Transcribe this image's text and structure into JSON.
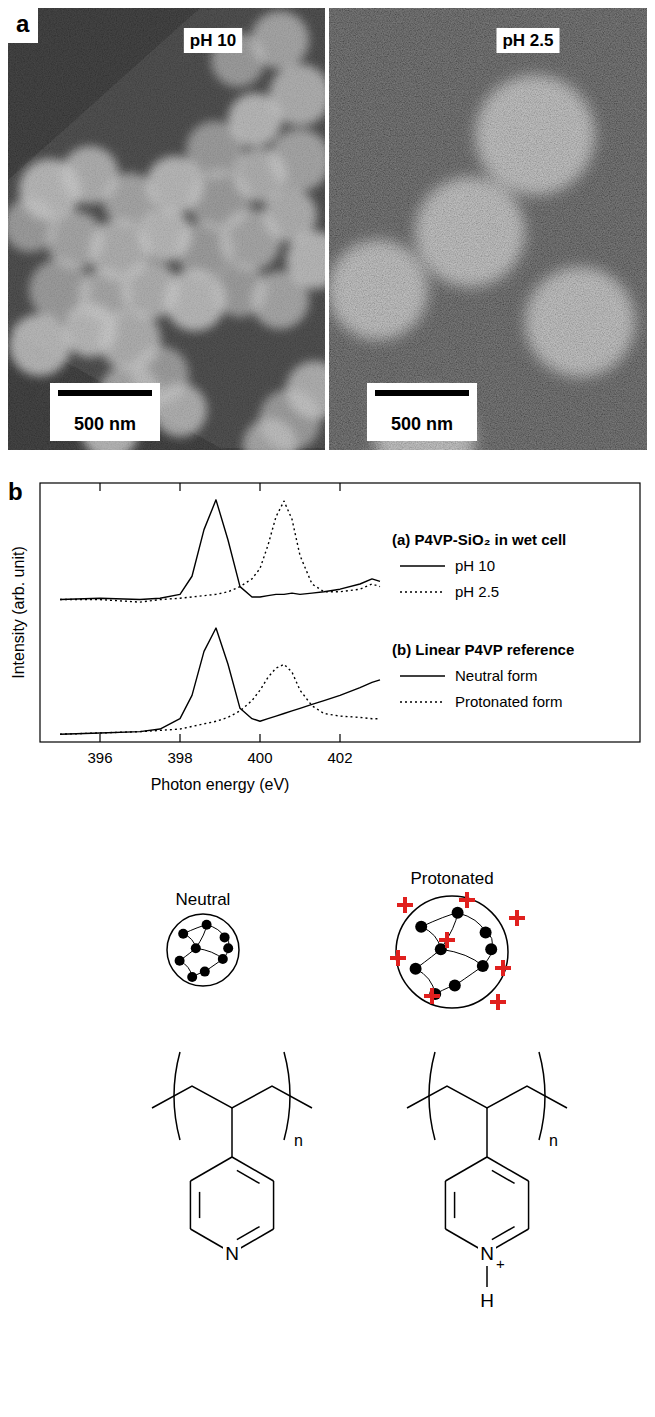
{
  "panel_labels": [
    "a",
    "b"
  ],
  "micrographs": [
    {
      "label": "pH 10",
      "scale_bar": "500 nm"
    },
    {
      "label": "pH 2.5",
      "scale_bar": "500 nm"
    }
  ],
  "chart_data": {
    "type": "line",
    "xlabel": "Photon energy (eV)",
    "ylabel": "Intensity (arb. unit)",
    "annotations": [
      "(a) P4VP-SiO₂ in wet cell",
      "(b) Linear P4VP reference"
    ],
    "x": [
      395,
      396,
      397,
      397.5,
      398,
      398.3,
      398.6,
      398.9,
      399.2,
      399.5,
      399.8,
      400,
      400.2,
      400.4,
      400.6,
      400.8,
      401,
      401.3,
      401.6,
      402,
      402.5,
      402.8,
      403
    ],
    "xlim": [
      394.5,
      409.5
    ],
    "xticks": [
      396,
      398,
      400,
      402
    ],
    "ylim": [
      0,
      10
    ],
    "tick_labels": "x",
    "legend": "right",
    "series": [
      {
        "name": "pH 10",
        "color": "#000000",
        "line_style": "solid",
        "values": [
          5.5,
          5.55,
          5.5,
          5.55,
          5.7,
          6.4,
          8.2,
          9.35,
          7.8,
          6.0,
          5.6,
          5.6,
          5.65,
          5.7,
          5.7,
          5.75,
          5.7,
          5.75,
          5.8,
          5.9,
          6.1,
          6.3,
          6.2
        ]
      },
      {
        "name": "pH 2.5",
        "color": "#000000",
        "line_style": "dotted",
        "values": [
          5.5,
          5.5,
          5.4,
          5.5,
          5.55,
          5.6,
          5.65,
          5.7,
          5.8,
          6.0,
          6.3,
          6.7,
          7.6,
          8.7,
          9.3,
          8.6,
          7.2,
          6.1,
          5.8,
          5.8,
          5.9,
          6.1,
          6.0
        ]
      },
      {
        "name": "Neutral form",
        "color": "#000000",
        "line_style": "solid",
        "values": [
          0.3,
          0.35,
          0.4,
          0.5,
          0.9,
          1.8,
          3.5,
          4.4,
          3.0,
          1.3,
          0.9,
          0.8,
          0.9,
          1.0,
          1.1,
          1.2,
          1.3,
          1.45,
          1.6,
          1.8,
          2.1,
          2.3,
          2.4
        ]
      },
      {
        "name": "Protonated form",
        "color": "#000000",
        "line_style": "dotted",
        "values": [
          0.3,
          0.35,
          0.4,
          0.45,
          0.5,
          0.6,
          0.7,
          0.8,
          0.95,
          1.2,
          1.6,
          2.0,
          2.5,
          2.85,
          3.0,
          2.7,
          2.0,
          1.4,
          1.1,
          1.0,
          0.95,
          0.9,
          0.9
        ]
      }
    ]
  },
  "schematic": {
    "states": [
      {
        "label": "Neutral"
      },
      {
        "label": "Protonated"
      }
    ],
    "structures": [
      {
        "repeat": "n",
        "atoms": [
          "N"
        ]
      },
      {
        "repeat": "n",
        "atoms": [
          "N",
          "+",
          "H"
        ]
      }
    ]
  }
}
